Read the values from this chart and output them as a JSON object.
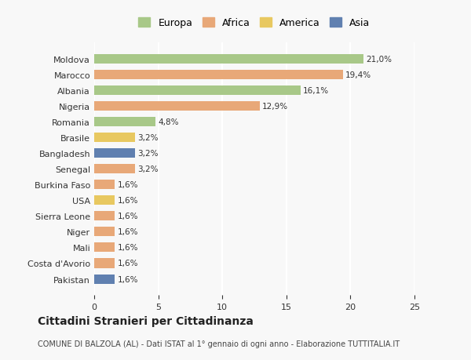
{
  "categories": [
    "Pakistan",
    "Costa d'Avorio",
    "Mali",
    "Niger",
    "Sierra Leone",
    "USA",
    "Burkina Faso",
    "Senegal",
    "Bangladesh",
    "Brasile",
    "Romania",
    "Nigeria",
    "Albania",
    "Marocco",
    "Moldova"
  ],
  "values": [
    1.6,
    1.6,
    1.6,
    1.6,
    1.6,
    1.6,
    1.6,
    3.2,
    3.2,
    3.2,
    4.8,
    12.9,
    16.1,
    19.4,
    21.0
  ],
  "colors": [
    "#6080b0",
    "#e8a878",
    "#e8a878",
    "#e8a878",
    "#e8a878",
    "#e8c860",
    "#e8a878",
    "#e8a878",
    "#6080b0",
    "#e8c860",
    "#a8c888",
    "#e8a878",
    "#a8c888",
    "#e8a878",
    "#a8c888"
  ],
  "labels": [
    "1,6%",
    "1,6%",
    "1,6%",
    "1,6%",
    "1,6%",
    "1,6%",
    "1,6%",
    "3,2%",
    "3,2%",
    "3,2%",
    "4,8%",
    "12,9%",
    "16,1%",
    "19,4%",
    "21,0%"
  ],
  "legend": [
    {
      "label": "Europa",
      "color": "#a8c888"
    },
    {
      "label": "Africa",
      "color": "#e8a878"
    },
    {
      "label": "America",
      "color": "#e8c860"
    },
    {
      "label": "Asia",
      "color": "#6080b0"
    }
  ],
  "title": "Cittadini Stranieri per Cittadinanza",
  "subtitle": "COMUNE DI BALZOLA (AL) - Dati ISTAT al 1° gennaio di ogni anno - Elaborazione TUTTITALIA.IT",
  "xlim": [
    0,
    25
  ],
  "xticks": [
    0,
    5,
    10,
    15,
    20,
    25
  ],
  "background_color": "#f8f8f8",
  "grid_color": "#ffffff",
  "bar_height": 0.6
}
